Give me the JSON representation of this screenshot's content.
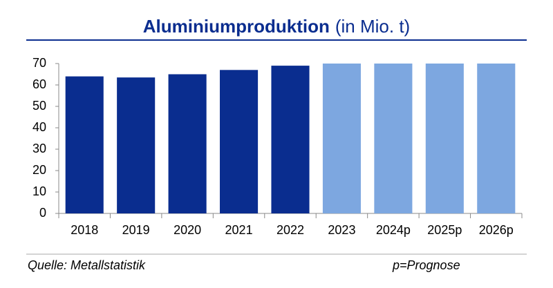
{
  "chart_data": {
    "type": "bar",
    "title": "Aluminiumproduktion",
    "title_unit": "(in Mio. t)",
    "categories": [
      "2018",
      "2019",
      "2020",
      "2021",
      "2022",
      "2023",
      "2024p",
      "2025p",
      "2026p"
    ],
    "values": [
      64,
      63.5,
      65,
      67,
      69,
      70,
      70,
      70,
      70
    ],
    "colors": [
      "#0a2d8f",
      "#0a2d8f",
      "#0a2d8f",
      "#0a2d8f",
      "#0a2d8f",
      "#7da7e0",
      "#7da7e0",
      "#7da7e0",
      "#7da7e0"
    ],
    "ylim": [
      0,
      70
    ],
    "yticks": [
      0,
      10,
      20,
      30,
      40,
      50,
      60,
      70
    ],
    "grid": false,
    "source": "Quelle: Metallstatistik",
    "note": "p=Prognose"
  }
}
